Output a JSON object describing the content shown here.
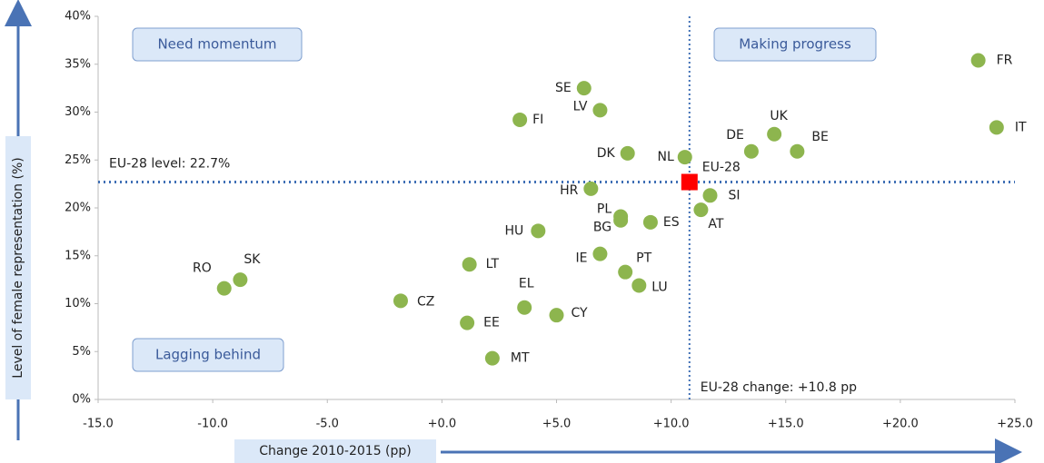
{
  "chart_data": {
    "type": "scatter",
    "x_label": "Change 2010-2015 (pp)",
    "y_label": "Level of female representation (%)",
    "quadrants": [
      "Need momentum",
      "Making progress",
      "Lagging behind"
    ],
    "level_annotation": "EU-28 level: 22.7%",
    "change_annotation": "EU-28 change: +10.8 pp",
    "xlim": [
      -15,
      25
    ],
    "ylim": [
      0,
      40
    ],
    "xticks": [
      {
        "value": -15,
        "label": "-15.0"
      },
      {
        "value": -10,
        "label": "-10.0"
      },
      {
        "value": -5,
        "label": "-5.0"
      },
      {
        "value": 0,
        "label": "+0.0"
      },
      {
        "value": 5,
        "label": "+5.0"
      },
      {
        "value": 10,
        "label": "+10.0"
      },
      {
        "value": 15,
        "label": "+15.0"
      },
      {
        "value": 20,
        "label": "+20.0"
      },
      {
        "value": 25,
        "label": "+25.0"
      }
    ],
    "yticks": [
      {
        "value": 0,
        "label": "0%"
      },
      {
        "value": 5,
        "label": "5%"
      },
      {
        "value": 10,
        "label": "10%"
      },
      {
        "value": 15,
        "label": "15%"
      },
      {
        "value": 20,
        "label": "20%"
      },
      {
        "value": 25,
        "label": "25%"
      },
      {
        "value": 30,
        "label": "30%"
      },
      {
        "value": 35,
        "label": "35%"
      },
      {
        "value": 40,
        "label": "40%"
      }
    ],
    "color": "#8db54e",
    "points": [
      {
        "label": "FR",
        "x": 23.4,
        "y": 35.4
      },
      {
        "label": "IT",
        "x": 24.2,
        "y": 28.4
      },
      {
        "label": "UK",
        "x": 14.5,
        "y": 27.7
      },
      {
        "label": "BE",
        "x": 15.5,
        "y": 25.9
      },
      {
        "label": "DE",
        "x": 13.5,
        "y": 25.9
      },
      {
        "label": "NL",
        "x": 10.6,
        "y": 25.3
      },
      {
        "label": "SI",
        "x": 11.7,
        "y": 21.3
      },
      {
        "label": "AT",
        "x": 11.3,
        "y": 19.8
      },
      {
        "label": "SE",
        "x": 6.2,
        "y": 32.5
      },
      {
        "label": "LV",
        "x": 6.9,
        "y": 30.2
      },
      {
        "label": "FI",
        "x": 3.4,
        "y": 29.2
      },
      {
        "label": "DK",
        "x": 8.1,
        "y": 25.7
      },
      {
        "label": "HR",
        "x": 6.5,
        "y": 22.0
      },
      {
        "label": "PL",
        "x": 7.8,
        "y": 19.1
      },
      {
        "label": "BG",
        "x": 7.8,
        "y": 18.7
      },
      {
        "label": "ES",
        "x": 9.1,
        "y": 18.5
      },
      {
        "label": "HU",
        "x": 4.2,
        "y": 17.6
      },
      {
        "label": "IE",
        "x": 6.9,
        "y": 15.2
      },
      {
        "label": "PT",
        "x": 8.0,
        "y": 13.3
      },
      {
        "label": "LU",
        "x": 8.6,
        "y": 11.9
      },
      {
        "label": "LT",
        "x": 1.2,
        "y": 14.1
      },
      {
        "label": "EL",
        "x": 3.6,
        "y": 9.6
      },
      {
        "label": "CY",
        "x": 5.0,
        "y": 8.8
      },
      {
        "label": "CZ",
        "x": -1.8,
        "y": 10.3
      },
      {
        "label": "EE",
        "x": 1.1,
        "y": 8.0
      },
      {
        "label": "MT",
        "x": 2.2,
        "y": 4.3
      },
      {
        "label": "RO",
        "x": -9.5,
        "y": 11.6
      },
      {
        "label": "SK",
        "x": -8.8,
        "y": 12.5
      }
    ],
    "eu": {
      "label": "EU-28",
      "x": 10.8,
      "y": 22.7,
      "color": "#ff0000"
    }
  }
}
